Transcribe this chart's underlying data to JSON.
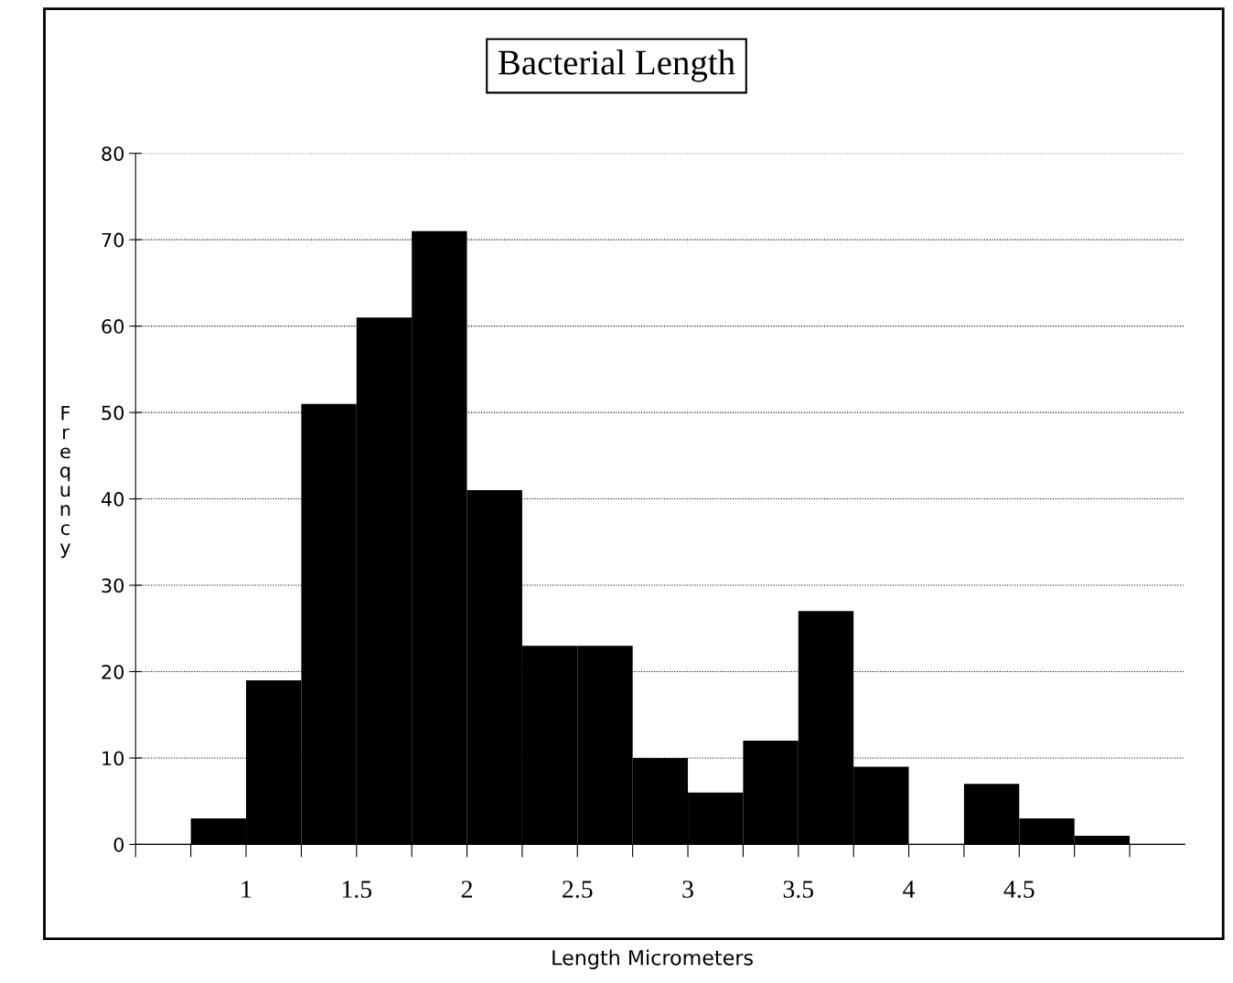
{
  "chart_data": {
    "type": "histogram",
    "title": "Bacterial Length",
    "xlabel": "Length Micrometers",
    "ylabel": "Frequncy",
    "bins": [
      0.75,
      1.0,
      1.25,
      1.5,
      1.75,
      2.0,
      2.25,
      2.5,
      2.75,
      3.0,
      3.25,
      3.5,
      3.75,
      4.0,
      4.25,
      4.5,
      4.75,
      5.0
    ],
    "values": [
      3,
      19,
      51,
      61,
      71,
      41,
      23,
      23,
      10,
      6,
      12,
      27,
      9,
      0,
      7,
      3,
      1
    ],
    "color": "#000000",
    "xlim": [
      0.5,
      5.25
    ],
    "xticks": [
      {
        "value": 0.5,
        "label": null
      },
      {
        "value": 0.75,
        "label": null
      },
      1,
      {
        "value": 1.25,
        "label": null
      },
      1.5,
      {
        "value": 1.75,
        "label": null
      },
      2,
      {
        "value": 2.25,
        "label": null
      },
      2.5,
      {
        "value": 2.75,
        "label": null
      },
      3,
      {
        "value": 3.25,
        "label": null
      },
      3.5,
      {
        "value": 3.75,
        "label": null
      },
      4,
      {
        "value": 4.25,
        "label": null
      },
      4.5,
      {
        "value": 4.75,
        "label": null
      },
      {
        "value": 5.0,
        "label": null
      }
    ],
    "ylim": [
      0,
      80
    ],
    "yticks": [
      0,
      10,
      20,
      30,
      40,
      50,
      60,
      70,
      80
    ],
    "grid": "y"
  }
}
